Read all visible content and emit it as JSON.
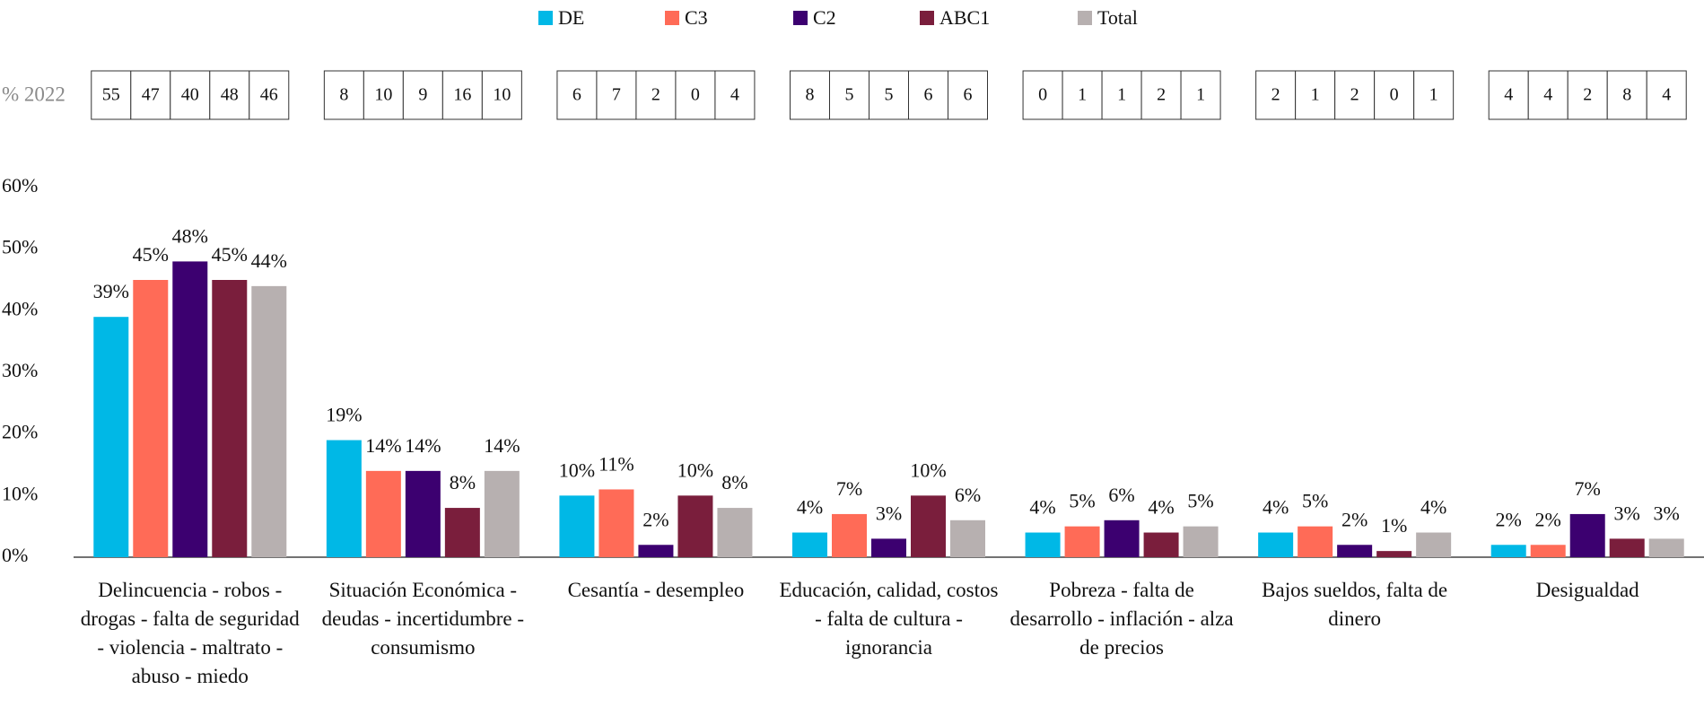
{
  "chart_data": {
    "type": "bar",
    "categories": [
      "Delincuencia - robos - drogas - falta de seguridad - violencia - maltrato - abuso - miedo",
      "Situación Económica - deudas - incertidumbre - consumismo",
      "Cesantía - desempleo",
      "Educación, calidad, costos - falta de cultura - ignorancia",
      "Pobreza - falta de desarrollo - inflación - alza de precios",
      "Bajos sueldos, falta de dinero",
      "Desigualdad"
    ],
    "series": [
      {
        "name": "DE",
        "color": "#00b8e6",
        "values": [
          39,
          19,
          10,
          4,
          4,
          4,
          2
        ],
        "value_labels": [
          "39%",
          "19%",
          "10%",
          "4%",
          "4%",
          "4%",
          "2%"
        ]
      },
      {
        "name": "C3",
        "color": "#ff6b57",
        "values": [
          45,
          14,
          11,
          7,
          5,
          5,
          2
        ],
        "value_labels": [
          "45%",
          "14%",
          "11%",
          "7%",
          "5%",
          "5%",
          "2%"
        ]
      },
      {
        "name": "C2",
        "color": "#3c0070",
        "values": [
          48,
          14,
          2,
          3,
          6,
          2,
          7
        ],
        "value_labels": [
          "48%",
          "14%",
          "2%",
          "3%",
          "6%",
          "2%",
          "7%"
        ]
      },
      {
        "name": "ABC1",
        "color": "#7a1e3c",
        "values": [
          45,
          8,
          10,
          10,
          4,
          1,
          3
        ],
        "value_labels": [
          "45%",
          "8%",
          "10%",
          "10%",
          "4%",
          "1%",
          "3%"
        ]
      },
      {
        "name": "Total",
        "color": "#b7b0b0",
        "values": [
          44,
          14,
          8,
          6,
          5,
          4,
          3
        ],
        "value_labels": [
          "44%",
          "14%",
          "8%",
          "6%",
          "5%",
          "4%",
          "3%"
        ]
      }
    ],
    "ylim": [
      0,
      60
    ],
    "yticks": [
      {
        "value": 0,
        "label": "0%"
      },
      {
        "value": 10,
        "label": "10%"
      },
      {
        "value": 20,
        "label": "20%"
      },
      {
        "value": 30,
        "label": "30%"
      },
      {
        "value": 40,
        "label": "40%"
      },
      {
        "value": 50,
        "label": "50%"
      },
      {
        "value": 60,
        "label": "60%"
      }
    ],
    "legend": "top",
    "table_label": "% 2022",
    "table_2022": [
      [
        55,
        47,
        40,
        48,
        46
      ],
      [
        8,
        10,
        9,
        16,
        10
      ],
      [
        6,
        7,
        2,
        0,
        4
      ],
      [
        8,
        5,
        5,
        6,
        6
      ],
      [
        0,
        1,
        1,
        2,
        1
      ],
      [
        2,
        1,
        2,
        0,
        1
      ],
      [
        4,
        4,
        2,
        8,
        4
      ]
    ]
  }
}
